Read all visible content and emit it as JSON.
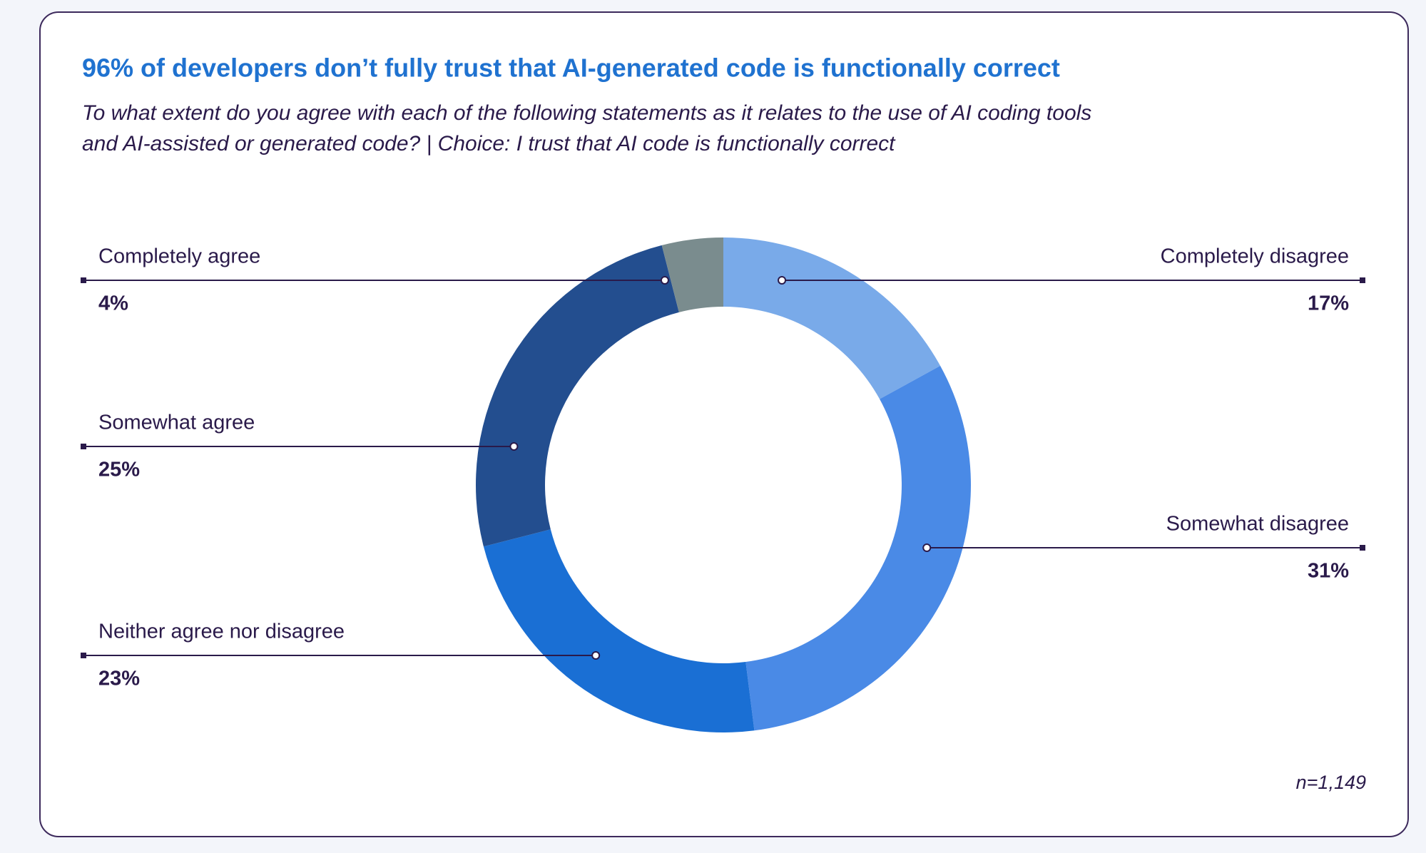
{
  "chart_data": {
    "type": "donut",
    "title": "96% of developers don’t fully trust that AI-generated code is functionally correct",
    "subtitle": [
      "To what extent do you agree with each of the following statements as it relates to the use of AI coding tools",
      "and AI-assisted or generated code? | Choice: I trust that AI code is functionally correct"
    ],
    "categories": [
      "Completely disagree",
      "Somewhat disagree",
      "Neither agree nor disagree",
      "Somewhat agree",
      "Completely agree"
    ],
    "values": [
      17,
      31,
      23,
      25,
      4
    ],
    "value_labels": [
      "17%",
      "31%",
      "23%",
      "25%",
      "4%"
    ],
    "colors": [
      "#79aae9",
      "#4a8ae6",
      "#1a6fd4",
      "#234e8f",
      "#7a8c8e"
    ],
    "note": "n=1,149"
  }
}
